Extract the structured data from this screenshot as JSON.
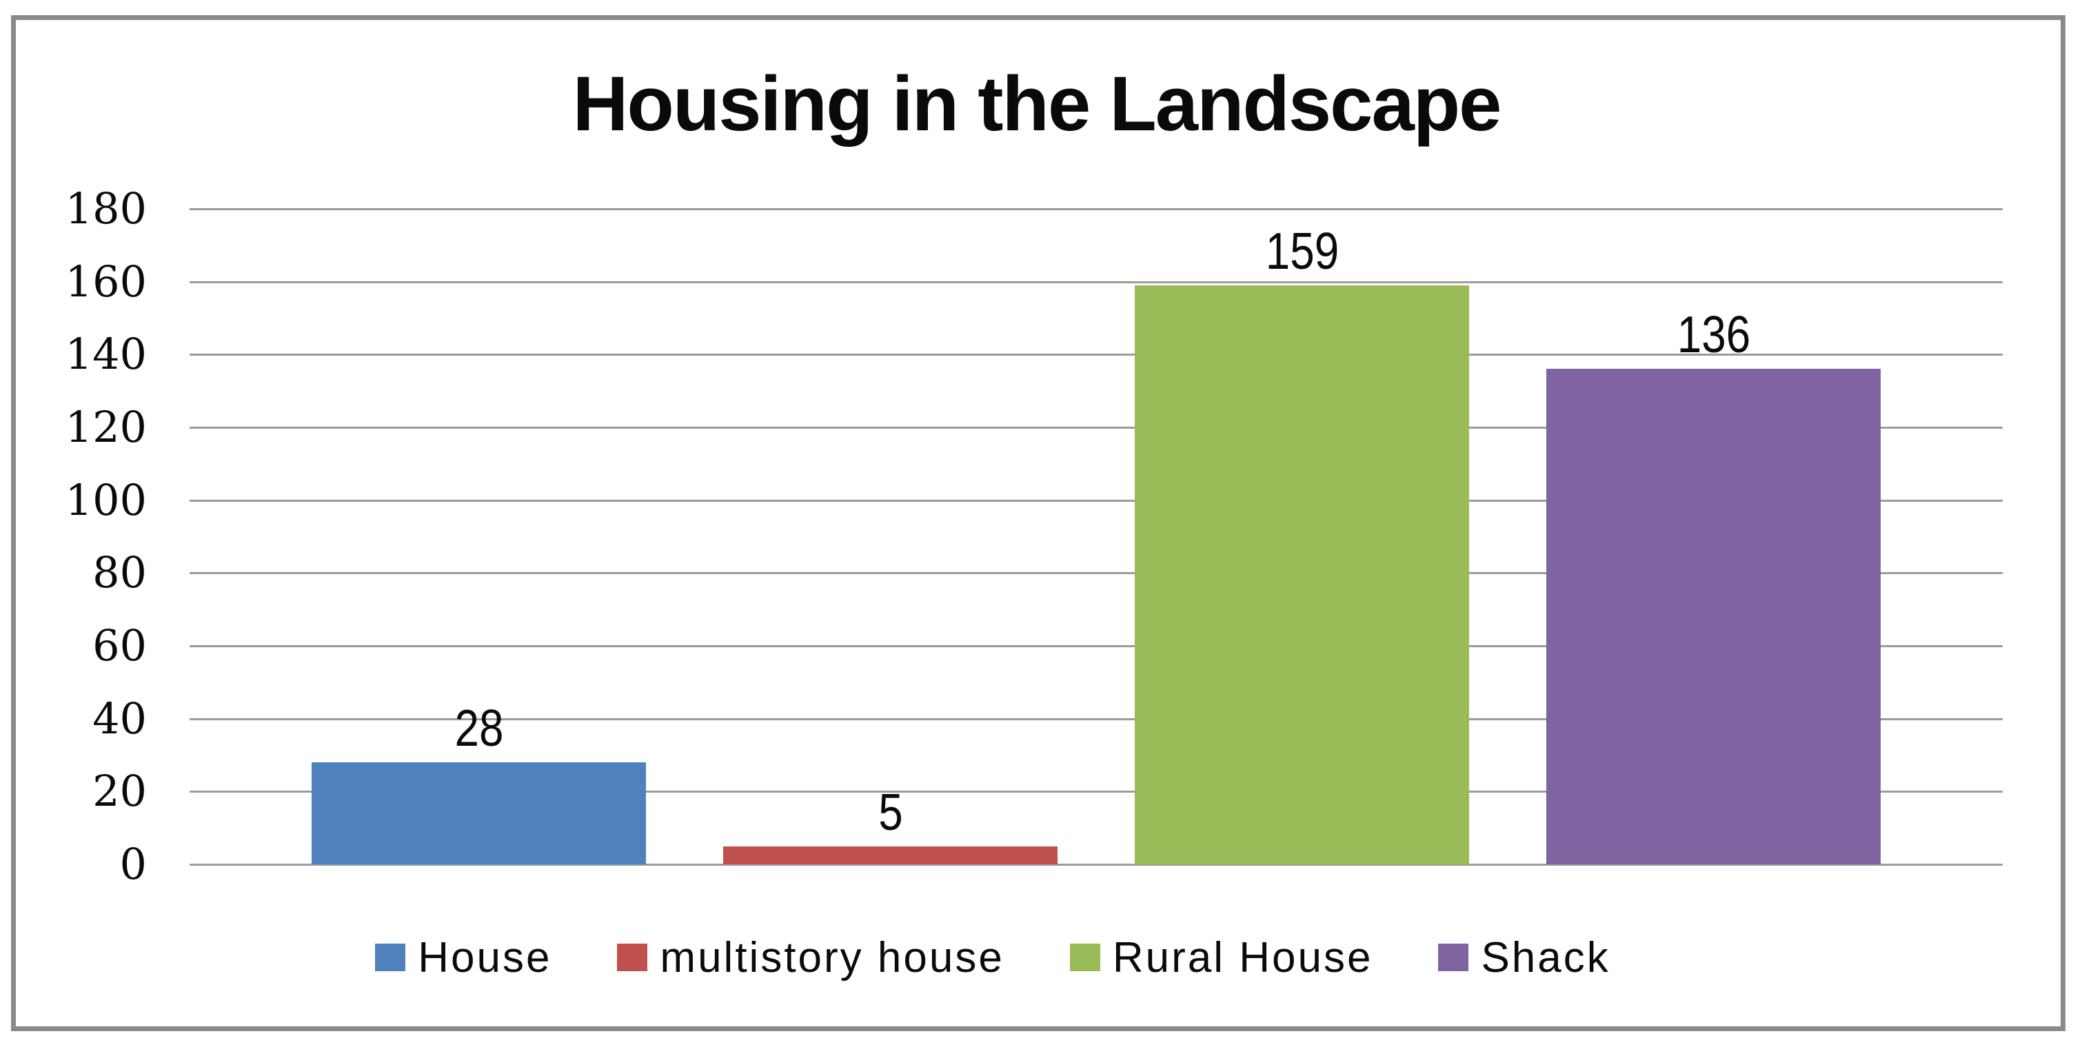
{
  "chart_data": {
    "type": "bar",
    "title": "Housing in the Landscape",
    "categories": [
      "House",
      "multistory house",
      "Rural House",
      "Shack"
    ],
    "values": [
      28,
      5,
      159,
      136
    ],
    "data_labels": [
      "28",
      "5",
      "159",
      "136"
    ],
    "bar_colors": [
      "#4F81BD",
      "#C0504D",
      "#9BBB59",
      "#8064A2"
    ],
    "xlabel": "",
    "ylabel": "",
    "ylim": [
      0,
      180
    ],
    "yticks": [
      0,
      20,
      40,
      60,
      80,
      100,
      120,
      140,
      160,
      180
    ],
    "grid": true,
    "legend_position": "bottom",
    "legend": {
      "entries": [
        {
          "label": "House",
          "color": "#4F81BD"
        },
        {
          "label": "multistory house",
          "color": "#C0504D"
        },
        {
          "label": "Rural House",
          "color": "#9BBB59"
        },
        {
          "label": "Shack",
          "color": "#8064A2"
        }
      ]
    }
  },
  "styles": {
    "background": "#FFFFFF",
    "frame_border_color": "#8A8A8A",
    "gridline_color": "#9B9B9B",
    "text_color": "#0A0A0A"
  }
}
